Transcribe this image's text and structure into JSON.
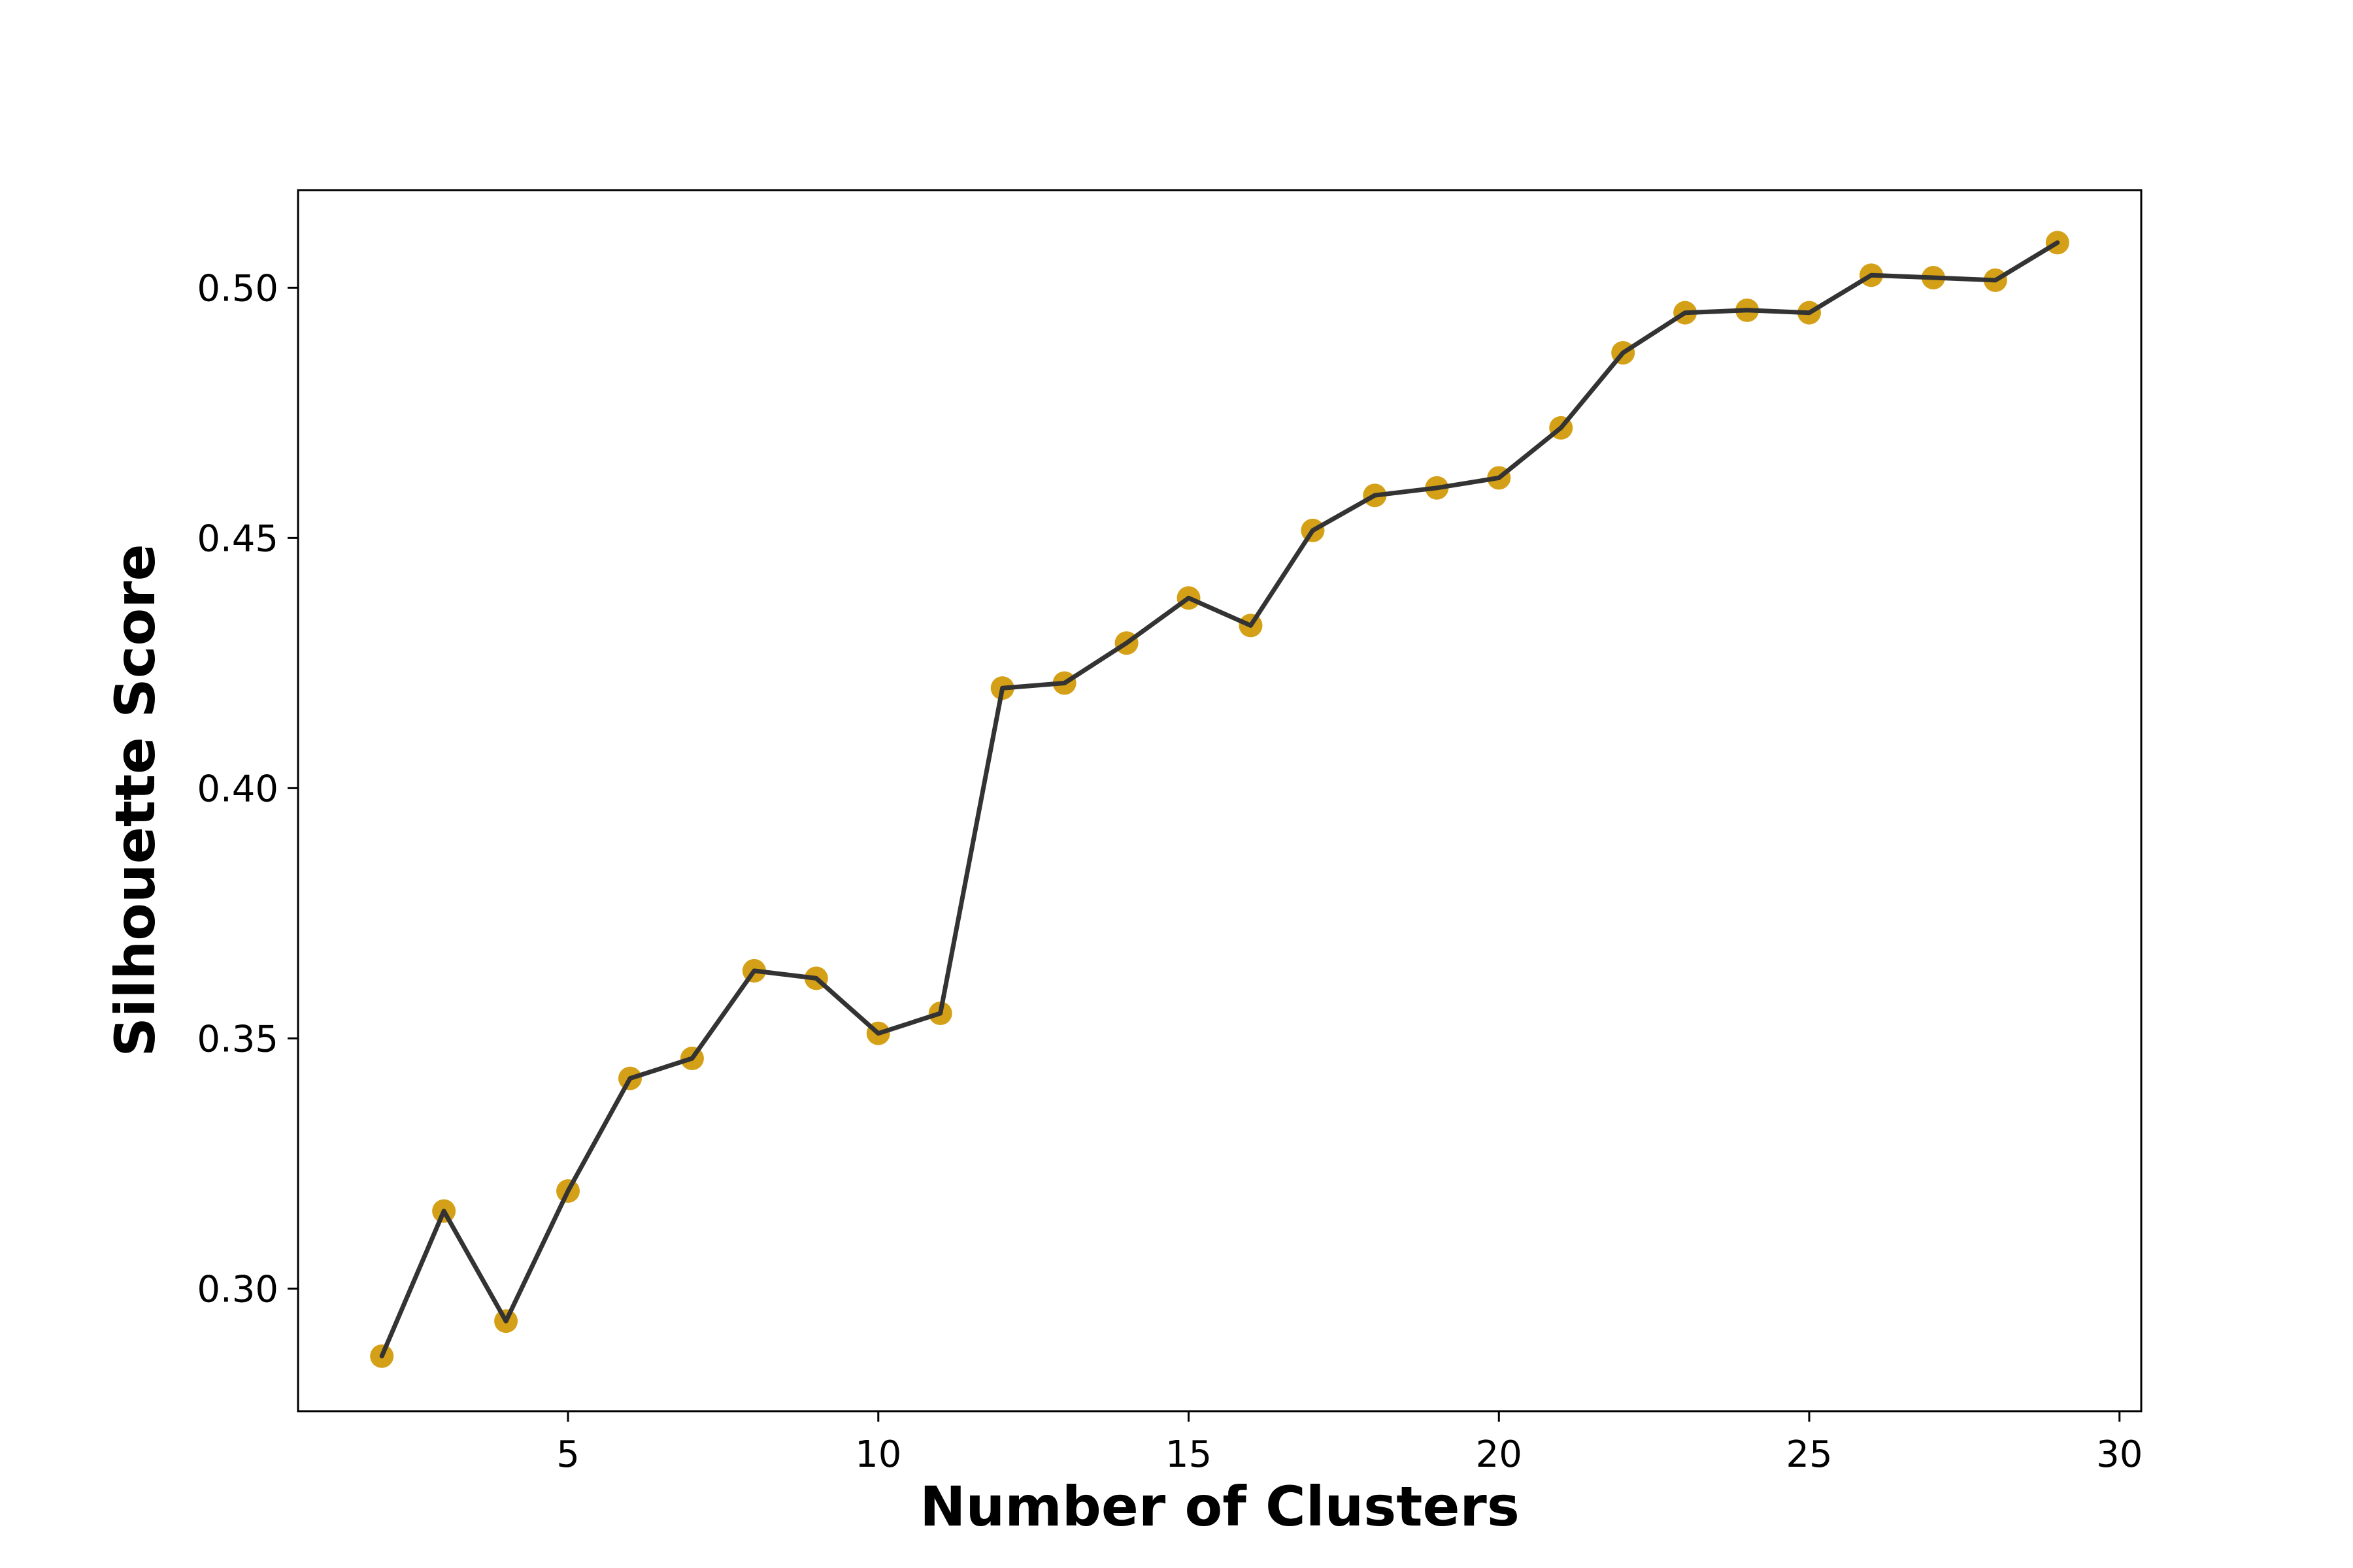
{
  "chart_data": {
    "type": "line",
    "xlabel": "Number of Clusters",
    "ylabel": "Silhouette Score",
    "xlim": [
      0.65,
      30.35
    ],
    "ylim": [
      0.2755,
      0.5195
    ],
    "x_ticks": [
      5,
      10,
      15,
      20,
      25,
      30
    ],
    "y_ticks": [
      0.3,
      0.35,
      0.4,
      0.45,
      0.5
    ],
    "x_tick_labels": [
      "5",
      "10",
      "15",
      "20",
      "25",
      "30"
    ],
    "y_tick_labels": [
      "0.30",
      "0.35",
      "0.40",
      "0.45",
      "0.50"
    ],
    "grid": false,
    "line_color": "#333333",
    "marker_color": "#D4A017",
    "x": [
      2,
      3,
      4,
      5,
      6,
      7,
      8,
      9,
      10,
      11,
      12,
      13,
      14,
      15,
      16,
      17,
      18,
      19,
      20,
      21,
      22,
      23,
      24,
      25,
      26,
      27,
      28,
      29
    ],
    "values": [
      0.2865,
      0.3155,
      0.2935,
      0.3195,
      0.342,
      0.346,
      0.3635,
      0.362,
      0.351,
      0.355,
      0.42,
      0.421,
      0.429,
      0.438,
      0.4325,
      0.4515,
      0.4585,
      0.46,
      0.462,
      0.472,
      0.487,
      0.495,
      0.4955,
      0.495,
      0.5025,
      0.502,
      0.5015,
      0.509
    ]
  }
}
